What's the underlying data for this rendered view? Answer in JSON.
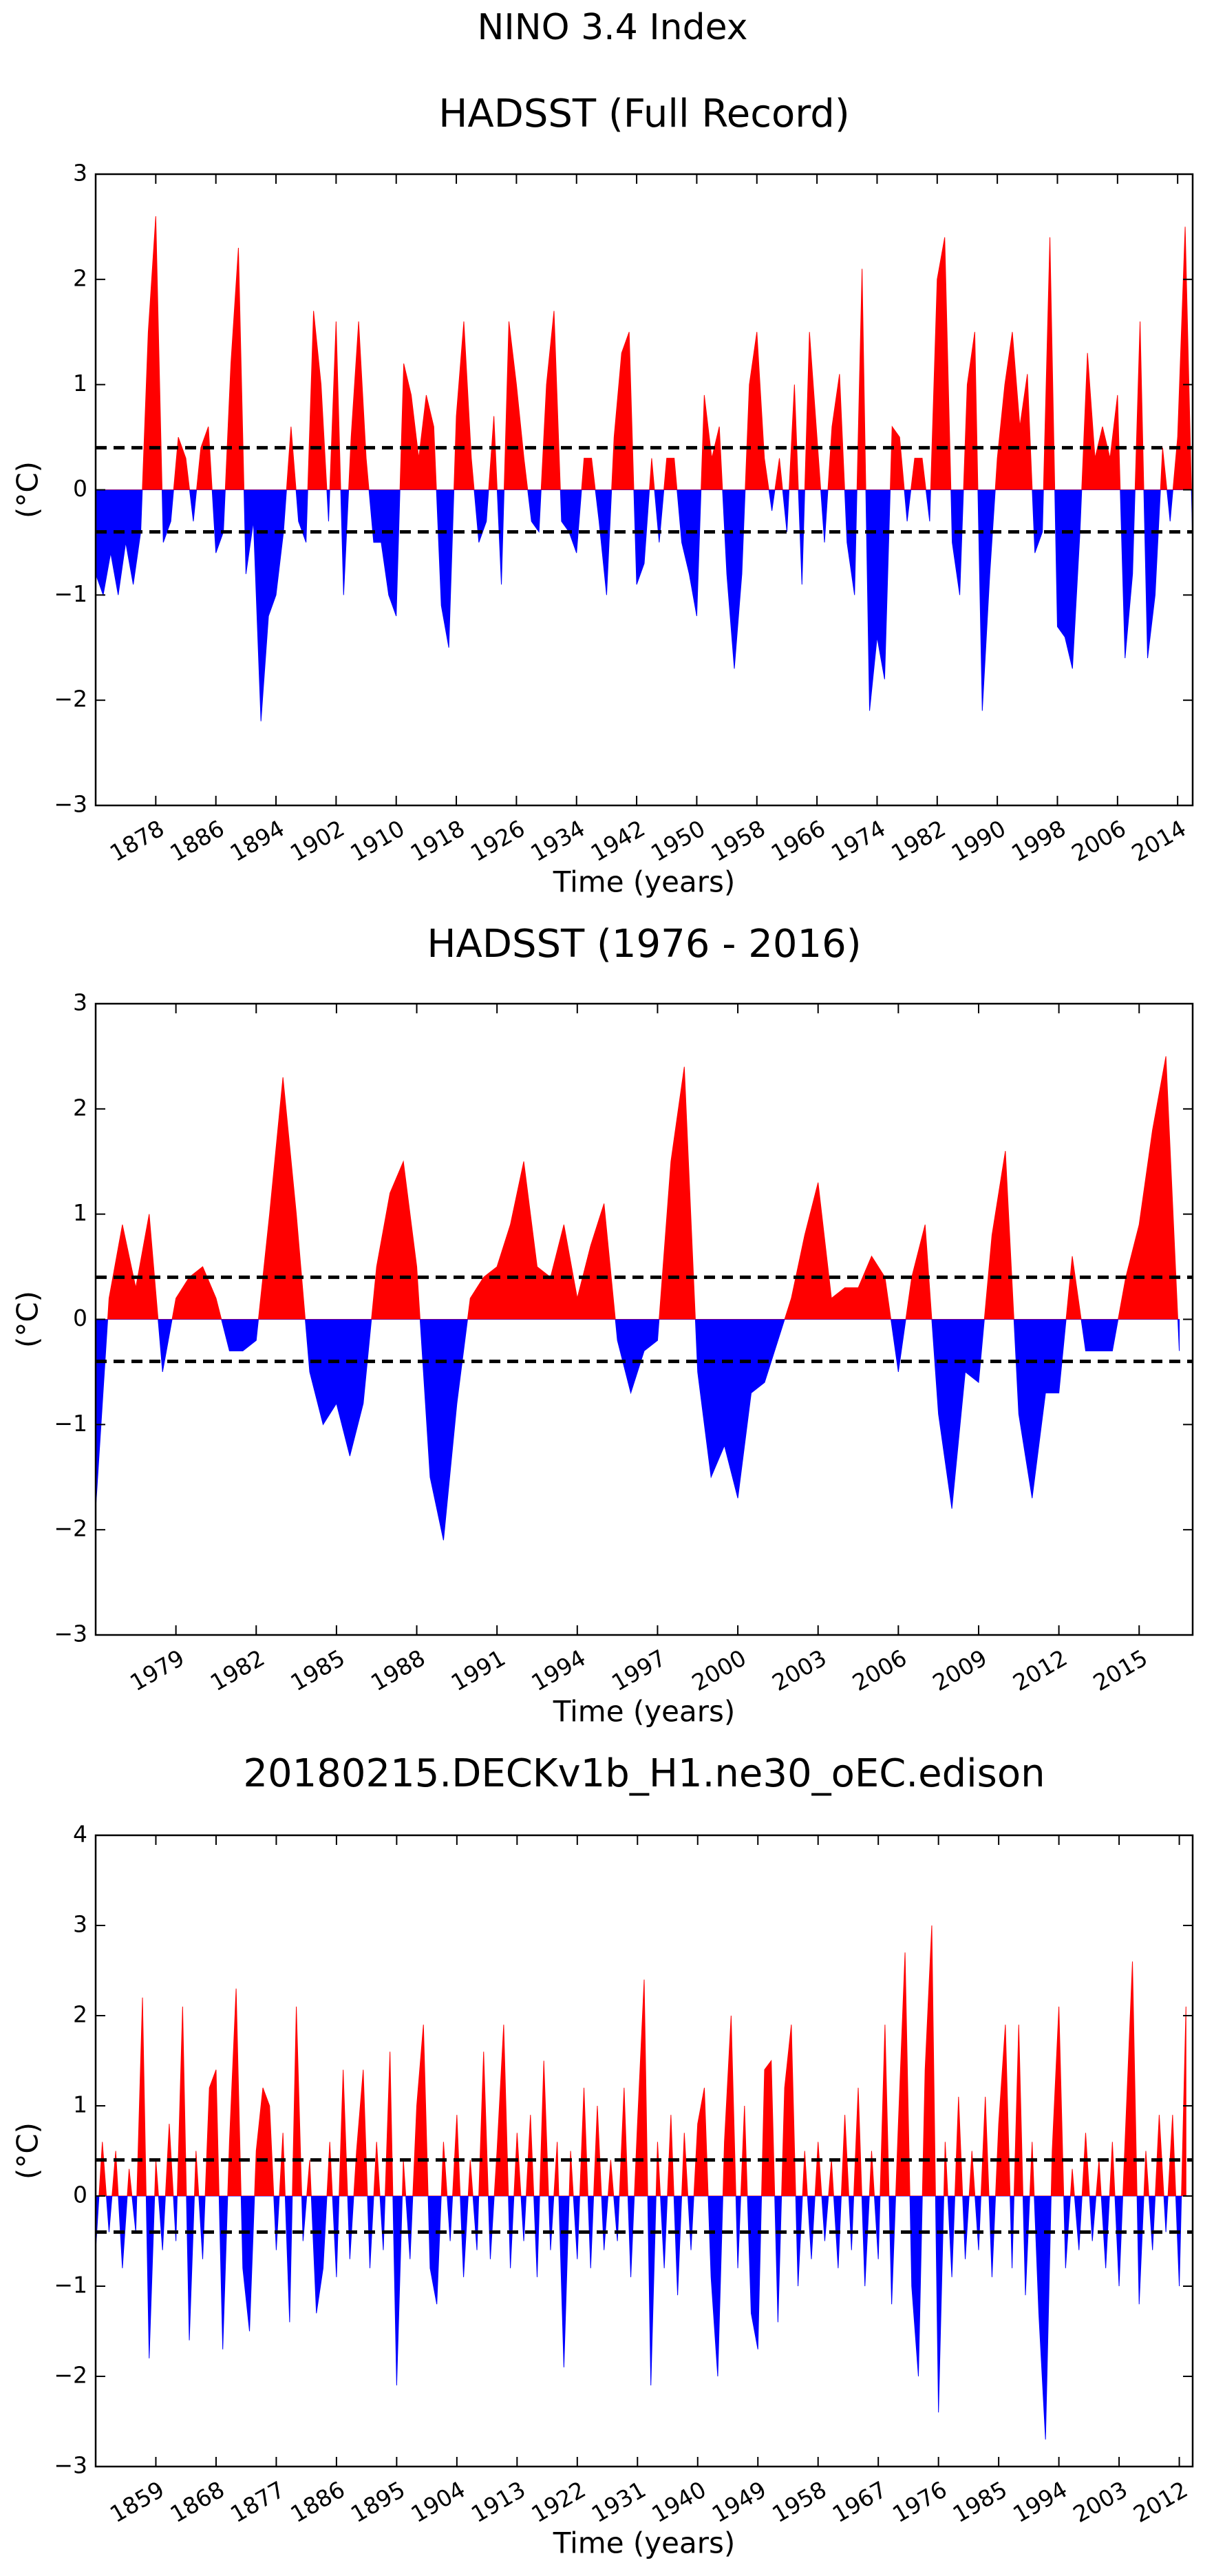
{
  "title": "NINO 3.4 Index",
  "chart_data": [
    {
      "type": "area",
      "title": "HADSST (Full Record)",
      "xlabel": "Time (years)",
      "ylabel": "(°C)",
      "positive_color": "#ff0000",
      "negative_color": "#0000ff",
      "hlines": [
        0.4,
        -0.4
      ],
      "xlim": [
        1870,
        2016
      ],
      "ylim": [
        -3,
        3
      ],
      "xticks": [
        1878,
        1886,
        1894,
        1902,
        1910,
        1918,
        1926,
        1934,
        1942,
        1950,
        1958,
        1966,
        1974,
        1982,
        1990,
        1998,
        2006,
        2014
      ],
      "yticks": [
        {
          "value": -3,
          "label": "−3"
        },
        {
          "value": -2,
          "label": "−2"
        },
        {
          "value": -1,
          "label": "−1"
        },
        0,
        1,
        2,
        3
      ],
      "x": [
        1870,
        1871,
        1872,
        1873,
        1874,
        1875,
        1876,
        1877,
        1878,
        1879,
        1880,
        1881,
        1882,
        1883,
        1884,
        1885,
        1886,
        1887,
        1888,
        1889,
        1890,
        1891,
        1892,
        1893,
        1894,
        1895,
        1896,
        1897,
        1898,
        1899,
        1900,
        1901,
        1902,
        1903,
        1904,
        1905,
        1906,
        1907,
        1908,
        1909,
        1910,
        1911,
        1912,
        1913,
        1914,
        1915,
        1916,
        1917,
        1918,
        1919,
        1920,
        1921,
        1922,
        1923,
        1924,
        1925,
        1926,
        1927,
        1928,
        1929,
        1930,
        1931,
        1932,
        1933,
        1934,
        1935,
        1936,
        1937,
        1938,
        1939,
        1940,
        1941,
        1942,
        1943,
        1944,
        1945,
        1946,
        1947,
        1948,
        1949,
        1950,
        1951,
        1952,
        1953,
        1954,
        1955,
        1956,
        1957,
        1958,
        1959,
        1960,
        1961,
        1962,
        1963,
        1964,
        1965,
        1966,
        1967,
        1968,
        1969,
        1970,
        1971,
        1972,
        1973,
        1974,
        1975,
        1976,
        1977,
        1978,
        1979,
        1980,
        1981,
        1982,
        1983,
        1984,
        1985,
        1986,
        1987,
        1988,
        1989,
        1990,
        1991,
        1992,
        1993,
        1994,
        1995,
        1996,
        1997,
        1998,
        1999,
        2000,
        2001,
        2002,
        2003,
        2004,
        2005,
        2006,
        2007,
        2008,
        2009,
        2010,
        2011,
        2012,
        2013,
        2014,
        2015,
        2016
      ],
      "values": [
        -0.8,
        -1.0,
        -0.6,
        -1.0,
        -0.5,
        -0.9,
        -0.4,
        1.5,
        2.6,
        -0.5,
        -0.3,
        0.5,
        0.3,
        -0.3,
        0.4,
        0.6,
        -0.6,
        -0.4,
        1.2,
        2.3,
        -0.8,
        -0.3,
        -2.2,
        -1.2,
        -1.0,
        -0.4,
        0.6,
        -0.3,
        -0.5,
        1.7,
        1.0,
        -0.3,
        1.6,
        -1.0,
        0.5,
        1.6,
        0.3,
        -0.5,
        -0.5,
        -1.0,
        -1.2,
        1.2,
        0.9,
        0.3,
        0.9,
        0.6,
        -1.1,
        -1.5,
        0.7,
        1.6,
        0.3,
        -0.5,
        -0.3,
        0.7,
        -0.9,
        1.6,
        1.0,
        0.3,
        -0.3,
        -0.4,
        1.0,
        1.7,
        -0.3,
        -0.4,
        -0.6,
        0.3,
        0.3,
        -0.3,
        -1.0,
        0.5,
        1.3,
        1.5,
        -0.9,
        -0.7,
        0.3,
        -0.5,
        0.3,
        0.3,
        -0.5,
        -0.8,
        -1.2,
        0.9,
        0.3,
        0.6,
        -0.8,
        -1.7,
        -0.8,
        1.0,
        1.5,
        0.3,
        -0.2,
        0.3,
        -0.4,
        1.0,
        -0.9,
        1.5,
        0.5,
        -0.5,
        0.6,
        1.1,
        -0.5,
        -1.0,
        2.1,
        -2.1,
        -1.4,
        -1.8,
        0.6,
        0.5,
        -0.3,
        0.3,
        0.3,
        -0.3,
        2.0,
        2.4,
        -0.5,
        -1.0,
        1.0,
        1.5,
        -2.1,
        -0.8,
        0.3,
        1.0,
        1.5,
        0.6,
        1.1,
        -0.6,
        -0.4,
        2.4,
        -1.3,
        -1.4,
        -1.7,
        -0.4,
        1.3,
        0.3,
        0.6,
        0.3,
        0.9,
        -1.6,
        -0.8,
        1.6,
        -1.6,
        -1.0,
        0.4,
        -0.3,
        0.5,
        2.5,
        -0.5
      ]
    },
    {
      "type": "area",
      "title": "HADSST (1976 - 2016)",
      "xlabel": "Time (years)",
      "ylabel": "(°C)",
      "positive_color": "#ff0000",
      "negative_color": "#0000ff",
      "hlines": [
        0.4,
        -0.4
      ],
      "xlim": [
        1976,
        2017
      ],
      "ylim": [
        -3,
        3
      ],
      "xticks": [
        1979,
        1982,
        1985,
        1988,
        1991,
        1994,
        1997,
        2000,
        2003,
        2006,
        2009,
        2012,
        2015
      ],
      "yticks": [
        {
          "value": -3,
          "label": "−3"
        },
        {
          "value": -2,
          "label": "−2"
        },
        {
          "value": -1,
          "label": "−1"
        },
        0,
        1,
        2,
        3
      ],
      "x": [
        1976.0,
        1976.5,
        1977.0,
        1977.5,
        1978.0,
        1978.5,
        1979.0,
        1979.5,
        1980.0,
        1980.5,
        1981.0,
        1981.5,
        1982.0,
        1982.5,
        1983.0,
        1983.5,
        1984.0,
        1984.5,
        1985.0,
        1985.5,
        1986.0,
        1986.5,
        1987.0,
        1987.5,
        1988.0,
        1988.5,
        1989.0,
        1989.5,
        1990.0,
        1990.5,
        1991.0,
        1991.5,
        1992.0,
        1992.5,
        1993.0,
        1993.5,
        1994.0,
        1994.5,
        1995.0,
        1995.5,
        1996.0,
        1996.5,
        1997.0,
        1997.5,
        1998.0,
        1998.5,
        1999.0,
        1999.5,
        2000.0,
        2000.5,
        2001.0,
        2001.5,
        2002.0,
        2002.5,
        2003.0,
        2003.5,
        2004.0,
        2004.5,
        2005.0,
        2005.5,
        2006.0,
        2006.5,
        2007.0,
        2007.5,
        2008.0,
        2008.5,
        2009.0,
        2009.5,
        2010.0,
        2010.5,
        2011.0,
        2011.5,
        2012.0,
        2012.5,
        2013.0,
        2013.5,
        2014.0,
        2014.5,
        2015.0,
        2015.5,
        2016.0,
        2016.5
      ],
      "values": [
        -1.8,
        0.2,
        0.9,
        0.3,
        1.0,
        -0.5,
        0.2,
        0.4,
        0.5,
        0.2,
        -0.3,
        -0.3,
        -0.2,
        1.0,
        2.3,
        1.0,
        -0.5,
        -1.0,
        -0.8,
        -1.3,
        -0.8,
        0.5,
        1.2,
        1.5,
        0.5,
        -1.5,
        -2.1,
        -0.8,
        0.2,
        0.4,
        0.5,
        0.9,
        1.5,
        0.5,
        0.4,
        0.9,
        0.2,
        0.7,
        1.1,
        -0.2,
        -0.7,
        -0.3,
        -0.2,
        1.5,
        2.4,
        -0.5,
        -1.5,
        -1.2,
        -1.7,
        -0.7,
        -0.6,
        -0.2,
        0.2,
        0.8,
        1.3,
        0.2,
        0.3,
        0.3,
        0.6,
        0.4,
        -0.5,
        0.4,
        0.9,
        -0.9,
        -1.8,
        -0.5,
        -0.6,
        0.8,
        1.6,
        -0.9,
        -1.7,
        -0.7,
        -0.7,
        0.6,
        -0.3,
        -0.3,
        -0.3,
        0.4,
        0.9,
        1.8,
        2.5,
        -0.3
      ]
    },
    {
      "type": "area",
      "title": "20180215.DECKv1b_H1.ne30_oEC.edison",
      "xlabel": "Time (years)",
      "ylabel": "(°C)",
      "positive_color": "#ff0000",
      "negative_color": "#0000ff",
      "hlines": [
        0.4,
        -0.4
      ],
      "xlim": [
        1850,
        2014
      ],
      "ylim": [
        -3,
        4
      ],
      "xticks": [
        1859,
        1868,
        1877,
        1886,
        1895,
        1904,
        1913,
        1922,
        1931,
        1940,
        1949,
        1958,
        1967,
        1976,
        1985,
        1994,
        2003,
        2012
      ],
      "yticks": [
        {
          "value": -3,
          "label": "−3"
        },
        {
          "value": -2,
          "label": "−2"
        },
        {
          "value": -1,
          "label": "−1"
        },
        0,
        1,
        2,
        3,
        4
      ],
      "x": [
        1850,
        1851,
        1852,
        1853,
        1854,
        1855,
        1856,
        1857,
        1858,
        1859,
        1860,
        1861,
        1862,
        1863,
        1864,
        1865,
        1866,
        1867,
        1868,
        1869,
        1870,
        1871,
        1872,
        1873,
        1874,
        1875,
        1876,
        1877,
        1878,
        1879,
        1880,
        1881,
        1882,
        1883,
        1884,
        1885,
        1886,
        1887,
        1888,
        1889,
        1890,
        1891,
        1892,
        1893,
        1894,
        1895,
        1896,
        1897,
        1898,
        1899,
        1900,
        1901,
        1902,
        1903,
        1904,
        1905,
        1906,
        1907,
        1908,
        1909,
        1910,
        1911,
        1912,
        1913,
        1914,
        1915,
        1916,
        1917,
        1918,
        1919,
        1920,
        1921,
        1922,
        1923,
        1924,
        1925,
        1926,
        1927,
        1928,
        1929,
        1930,
        1931,
        1932,
        1933,
        1934,
        1935,
        1936,
        1937,
        1938,
        1939,
        1940,
        1941,
        1942,
        1943,
        1944,
        1945,
        1946,
        1947,
        1948,
        1949,
        1950,
        1951,
        1952,
        1953,
        1954,
        1955,
        1956,
        1957,
        1958,
        1959,
        1960,
        1961,
        1962,
        1963,
        1964,
        1965,
        1966,
        1967,
        1968,
        1969,
        1970,
        1971,
        1972,
        1973,
        1974,
        1975,
        1976,
        1977,
        1978,
        1979,
        1980,
        1981,
        1982,
        1983,
        1984,
        1985,
        1986,
        1987,
        1988,
        1989,
        1990,
        1991,
        1992,
        1993,
        1994,
        1995,
        1996,
        1997,
        1998,
        1999,
        2000,
        2001,
        2002,
        2003,
        2004,
        2005,
        2006,
        2007,
        2008,
        2009,
        2010,
        2011,
        2012,
        2013
      ],
      "values": [
        -0.6,
        0.6,
        -0.4,
        0.5,
        -0.8,
        0.3,
        -0.4,
        2.2,
        -1.8,
        0.4,
        -0.6,
        0.8,
        -0.5,
        2.1,
        -1.6,
        0.5,
        -0.7,
        1.2,
        1.4,
        -1.7,
        0.6,
        2.3,
        -0.8,
        -1.5,
        0.5,
        1.2,
        1.0,
        -0.6,
        0.7,
        -1.4,
        2.1,
        -0.5,
        0.4,
        -1.3,
        -0.8,
        0.6,
        -0.9,
        1.4,
        -0.7,
        0.5,
        1.4,
        -0.8,
        0.6,
        -0.6,
        1.6,
        -2.1,
        0.4,
        -0.7,
        1.0,
        1.9,
        -0.8,
        -1.2,
        0.6,
        -0.5,
        0.9,
        -0.9,
        0.4,
        -0.6,
        1.6,
        -0.7,
        0.5,
        1.9,
        -0.8,
        0.7,
        -0.5,
        0.9,
        -0.9,
        1.5,
        -0.6,
        0.6,
        -1.9,
        0.5,
        -0.7,
        1.2,
        -0.8,
        1.0,
        -0.6,
        0.4,
        -0.5,
        1.2,
        -0.9,
        0.8,
        2.4,
        -2.1,
        0.6,
        -0.8,
        0.9,
        -1.1,
        0.7,
        -0.6,
        0.8,
        1.2,
        -0.9,
        -2.0,
        0.6,
        2.0,
        -0.8,
        1.0,
        -1.3,
        -1.7,
        1.4,
        1.5,
        -1.4,
        1.2,
        1.9,
        -1.0,
        0.5,
        -0.7,
        0.6,
        -0.5,
        0.4,
        -0.8,
        0.9,
        -0.6,
        1.2,
        -1.0,
        0.5,
        -0.7,
        1.9,
        -1.2,
        0.8,
        2.7,
        -1.0,
        -2.0,
        1.4,
        3.0,
        -2.4,
        0.6,
        -0.9,
        1.1,
        -0.7,
        0.5,
        -0.6,
        1.1,
        -0.9,
        0.8,
        1.9,
        -0.8,
        1.9,
        -1.1,
        0.6,
        -1.3,
        -2.7,
        0.5,
        2.1,
        -0.8,
        0.3,
        -0.6,
        0.7,
        -0.5,
        0.4,
        -0.8,
        0.6,
        -1.0,
        0.8,
        2.6,
        -1.2,
        0.5,
        -0.6,
        0.9,
        -0.4,
        0.9,
        -1.0,
        2.1
      ]
    }
  ]
}
